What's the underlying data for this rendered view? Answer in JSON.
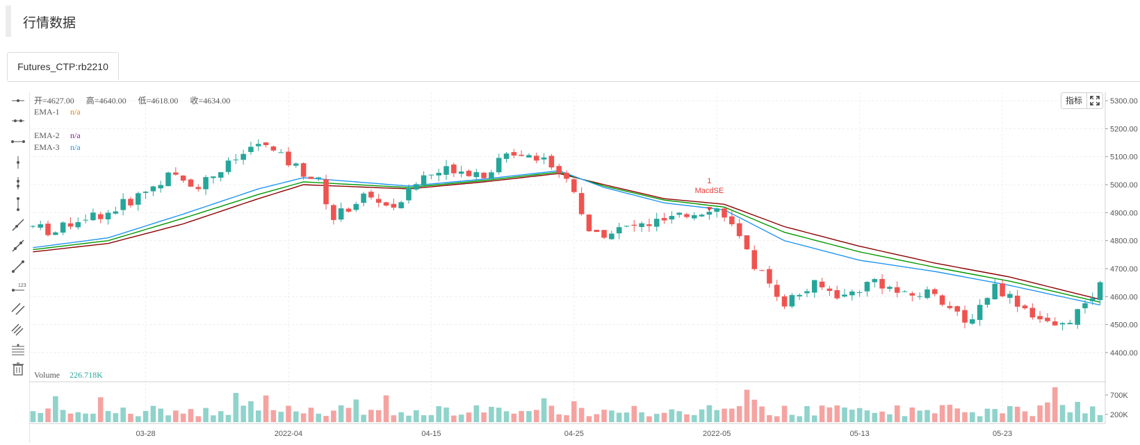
{
  "page": {
    "title": "行情数据",
    "tab": "Futures_CTP:rb2210"
  },
  "toolbar": {
    "indicator_label": "指标"
  },
  "legend": {
    "ohlc": [
      {
        "label": "开",
        "value": "4627.00"
      },
      {
        "label": "高",
        "value": "4640.00"
      },
      {
        "label": "低",
        "value": "4618.00"
      },
      {
        "label": "收",
        "value": "4634.00"
      }
    ],
    "emas": [
      {
        "name": "EMA-1",
        "value": "n/a",
        "color": "#f57c00"
      },
      {
        "name": "EMA-2",
        "value": "n/a",
        "color": "#7b1fa2"
      },
      {
        "name": "EMA-3",
        "value": "n/a",
        "color": "#2196f3"
      }
    ],
    "volume": {
      "name": "Volume",
      "value": "226.718K"
    }
  },
  "colors": {
    "up": "#26a69a",
    "down": "#ef5350",
    "ema_dark": "#8b0000",
    "ema_green": "#009900",
    "ema_blue": "#2196f3",
    "signal": "#e53935"
  },
  "signal": {
    "count": "1",
    "label": "MacdSE",
    "x_index": 90,
    "price": 4935
  },
  "chart_data": {
    "type": "candlestick",
    "price_axis": {
      "ticks": [
        "5300.00",
        "5200.00",
        "5100.00",
        "5000.00",
        "4900.00",
        "4800.00",
        "4700.00",
        "4600.00",
        "4500.00",
        "4400.00"
      ],
      "range": [
        4370,
        5330
      ]
    },
    "volume_axis": {
      "ticks": [
        "700K",
        "200K"
      ],
      "range": [
        0,
        950000
      ]
    },
    "x_axis": {
      "ticks": [
        {
          "label": "03-28",
          "index": 15
        },
        {
          "label": "2022-04",
          "index": 34
        },
        {
          "label": "04-15",
          "index": 53
        },
        {
          "label": "04-25",
          "index": 72
        },
        {
          "label": "2022-05",
          "index": 91
        },
        {
          "label": "05-13",
          "index": 110
        },
        {
          "label": "05-23",
          "index": 129
        }
      ]
    },
    "n_bars": 143,
    "path_points": [
      [
        0,
        4850
      ],
      [
        3,
        4830
      ],
      [
        6,
        4880
      ],
      [
        10,
        4900
      ],
      [
        14,
        4960
      ],
      [
        18,
        5030
      ],
      [
        22,
        5000
      ],
      [
        26,
        5070
      ],
      [
        30,
        5150
      ],
      [
        34,
        5080
      ],
      [
        38,
        5010
      ],
      [
        40,
        4880
      ],
      [
        44,
        4960
      ],
      [
        48,
        4920
      ],
      [
        52,
        5030
      ],
      [
        56,
        5060
      ],
      [
        60,
        5040
      ],
      [
        64,
        5120
      ],
      [
        68,
        5100
      ],
      [
        72,
        4990
      ],
      [
        74,
        4820
      ],
      [
        78,
        4840
      ],
      [
        82,
        4860
      ],
      [
        86,
        4880
      ],
      [
        90,
        4920
      ],
      [
        92,
        4900
      ],
      [
        95,
        4750
      ],
      [
        100,
        4580
      ],
      [
        104,
        4640
      ],
      [
        108,
        4600
      ],
      [
        112,
        4660
      ],
      [
        116,
        4600
      ],
      [
        120,
        4620
      ],
      [
        124,
        4500
      ],
      [
        128,
        4640
      ],
      [
        132,
        4560
      ],
      [
        136,
        4480
      ],
      [
        140,
        4560
      ],
      [
        142,
        4634
      ]
    ],
    "ema_series": [
      {
        "name": "EMA-1",
        "color": "#8b0000",
        "points": [
          [
            0,
            4760
          ],
          [
            10,
            4790
          ],
          [
            20,
            4860
          ],
          [
            30,
            4950
          ],
          [
            36,
            5000
          ],
          [
            50,
            4985
          ],
          [
            60,
            5010
          ],
          [
            70,
            5040
          ],
          [
            76,
            5000
          ],
          [
            84,
            4950
          ],
          [
            92,
            4930
          ],
          [
            100,
            4850
          ],
          [
            110,
            4780
          ],
          [
            120,
            4720
          ],
          [
            130,
            4670
          ],
          [
            142,
            4590
          ]
        ]
      },
      {
        "name": "EMA-2",
        "color": "#009900",
        "points": [
          [
            0,
            4768
          ],
          [
            10,
            4800
          ],
          [
            20,
            4880
          ],
          [
            30,
            4965
          ],
          [
            36,
            5010
          ],
          [
            50,
            4990
          ],
          [
            60,
            5015
          ],
          [
            70,
            5045
          ],
          [
            76,
            4995
          ],
          [
            84,
            4945
          ],
          [
            92,
            4920
          ],
          [
            100,
            4830
          ],
          [
            110,
            4760
          ],
          [
            120,
            4705
          ],
          [
            130,
            4655
          ],
          [
            142,
            4580
          ]
        ]
      },
      {
        "name": "EMA-3",
        "color": "#2196f3",
        "points": [
          [
            0,
            4775
          ],
          [
            10,
            4810
          ],
          [
            20,
            4895
          ],
          [
            30,
            4985
          ],
          [
            36,
            5025
          ],
          [
            50,
            4995
          ],
          [
            60,
            5020
          ],
          [
            70,
            5050
          ],
          [
            76,
            4990
          ],
          [
            84,
            4935
          ],
          [
            92,
            4910
          ],
          [
            100,
            4800
          ],
          [
            110,
            4730
          ],
          [
            120,
            4690
          ],
          [
            130,
            4640
          ],
          [
            142,
            4570
          ]
        ]
      }
    ]
  }
}
